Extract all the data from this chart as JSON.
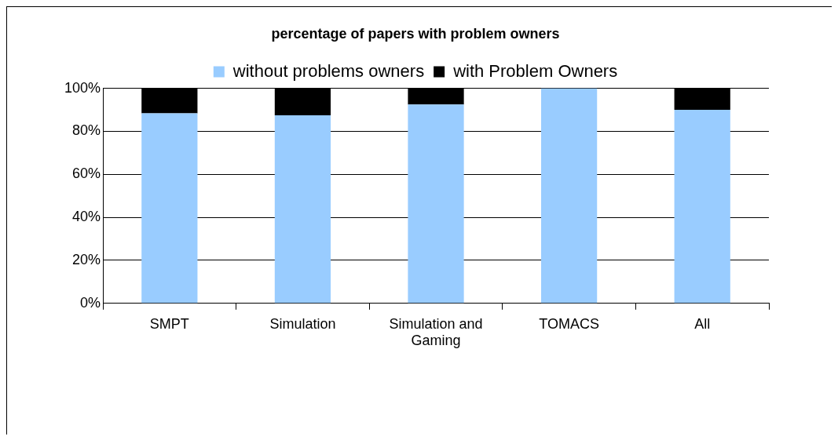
{
  "chart_data": {
    "type": "bar",
    "title": "percentage of papers with problem owners",
    "categories": [
      "SMPT",
      "Simulation",
      "Simulation and Gaming",
      "TOMACS",
      "All"
    ],
    "stacked": true,
    "series": [
      {
        "name": "without problems owners",
        "color": "#99ccff",
        "values": [
          88.4,
          87.5,
          92.5,
          100,
          90
        ]
      },
      {
        "name": "with Problem Owners",
        "color": "#000000",
        "values": [
          11.6,
          12.5,
          7.5,
          0,
          10
        ]
      }
    ],
    "ylim": [
      0,
      100
    ],
    "yticks": [
      {
        "value": 0,
        "label": "0%"
      },
      {
        "value": 20,
        "label": "20%"
      },
      {
        "value": 40,
        "label": "40%"
      },
      {
        "value": 60,
        "label": "60%"
      },
      {
        "value": 80,
        "label": "80%"
      },
      {
        "value": 100,
        "label": "100%"
      }
    ],
    "grid": "y",
    "legend": "top"
  }
}
